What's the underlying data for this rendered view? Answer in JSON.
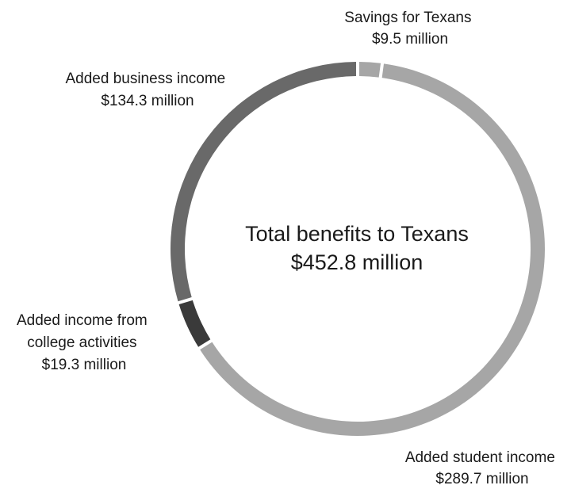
{
  "chart_data": {
    "type": "pie",
    "style": "donut",
    "center_label": {
      "line1": "Total benefits to Texans",
      "line2": "$452.8 million"
    },
    "total": 452.8,
    "unit": "million USD",
    "slices": [
      {
        "name": "Savings for Texans",
        "value": 9.5,
        "value_label": "$9.5 million",
        "color": "#a6a6a6",
        "label_lines": [
          "Savings for Texans",
          "$9.5 million"
        ]
      },
      {
        "name": "Added student income",
        "value": 289.7,
        "value_label": "$289.7 million",
        "color": "#a6a6a6",
        "label_lines": [
          "Added student income",
          "$289.7 million"
        ]
      },
      {
        "name": "Added income from college activities",
        "value": 19.3,
        "value_label": "$19.3 million",
        "color": "#3a3a3a",
        "label_lines": [
          "Added income from",
          "college activities",
          "$19.3 million"
        ]
      },
      {
        "name": "Added business income",
        "value": 134.3,
        "value_label": "$134.3 million",
        "color": "#696969",
        "label_lines": [
          "Added business income",
          "$134.3 million"
        ]
      }
    ]
  }
}
